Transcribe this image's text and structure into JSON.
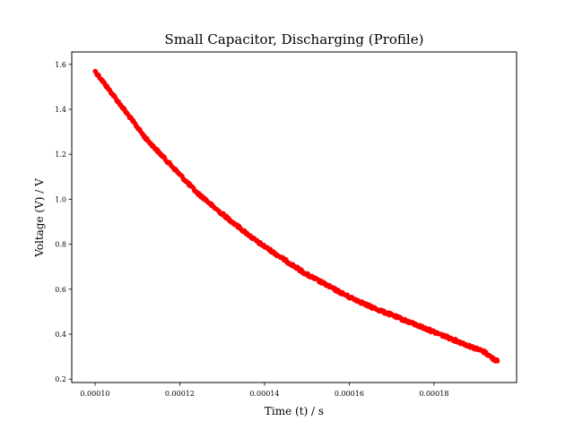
{
  "chart_data": {
    "type": "line",
    "title": "Small Capacitor, Discharging (Profile)",
    "xlabel": "Time (t) / s",
    "ylabel": "Voltage (V) / V",
    "xlim": [
      9.45e-05,
      0.0001995
    ],
    "ylim": [
      0.185,
      1.655
    ],
    "x_ticks": [
      {
        "value": 0.0001,
        "label": "0.00010"
      },
      {
        "value": 0.00012,
        "label": "0.00012"
      },
      {
        "value": 0.00014,
        "label": "0.00014"
      },
      {
        "value": 0.00016,
        "label": "0.00016"
      },
      {
        "value": 0.00018,
        "label": "0.00018"
      }
    ],
    "y_ticks": [
      {
        "value": 0.2,
        "label": "0.2"
      },
      {
        "value": 0.4,
        "label": "0.4"
      },
      {
        "value": 0.6,
        "label": "0.6"
      },
      {
        "value": 0.8,
        "label": "0.8"
      },
      {
        "value": 1.0,
        "label": "1.0"
      },
      {
        "value": 1.2,
        "label": "1.2"
      },
      {
        "value": 1.4,
        "label": "1.4"
      },
      {
        "value": 1.6,
        "label": "1.6"
      }
    ],
    "grid": false,
    "legend": "none",
    "series": [
      {
        "color": "#ff0000",
        "x": [
          0.0001,
          0.000102,
          0.000104,
          0.000106,
          0.000108,
          0.00011,
          0.000112,
          0.000114,
          0.000116,
          0.000118,
          0.00012,
          0.000122,
          0.000124,
          0.000126,
          0.000128,
          0.00013,
          0.000132,
          0.000134,
          0.000136,
          0.000138,
          0.00014,
          0.000142,
          0.000144,
          0.000146,
          0.000148,
          0.00015,
          0.000152,
          0.000154,
          0.000156,
          0.000158,
          0.00016,
          0.000162,
          0.000164,
          0.000166,
          0.000168,
          0.00017,
          0.000172,
          0.000174,
          0.000176,
          0.000178,
          0.00018,
          0.000182,
          0.000184,
          0.000186,
          0.000188,
          0.00019,
          0.000192,
          0.000194,
          0.000195
        ],
        "y": [
          1.57,
          1.52,
          1.47,
          1.42,
          1.37,
          1.32,
          1.27,
          1.23,
          1.19,
          1.15,
          1.11,
          1.07,
          1.03,
          1.0,
          0.965,
          0.935,
          0.905,
          0.875,
          0.845,
          0.815,
          0.79,
          0.765,
          0.74,
          0.715,
          0.69,
          0.665,
          0.645,
          0.625,
          0.605,
          0.585,
          0.565,
          0.55,
          0.53,
          0.515,
          0.5,
          0.485,
          0.47,
          0.455,
          0.44,
          0.425,
          0.41,
          0.395,
          0.38,
          0.365,
          0.35,
          0.335,
          0.32,
          0.29,
          0.28
        ]
      }
    ]
  }
}
